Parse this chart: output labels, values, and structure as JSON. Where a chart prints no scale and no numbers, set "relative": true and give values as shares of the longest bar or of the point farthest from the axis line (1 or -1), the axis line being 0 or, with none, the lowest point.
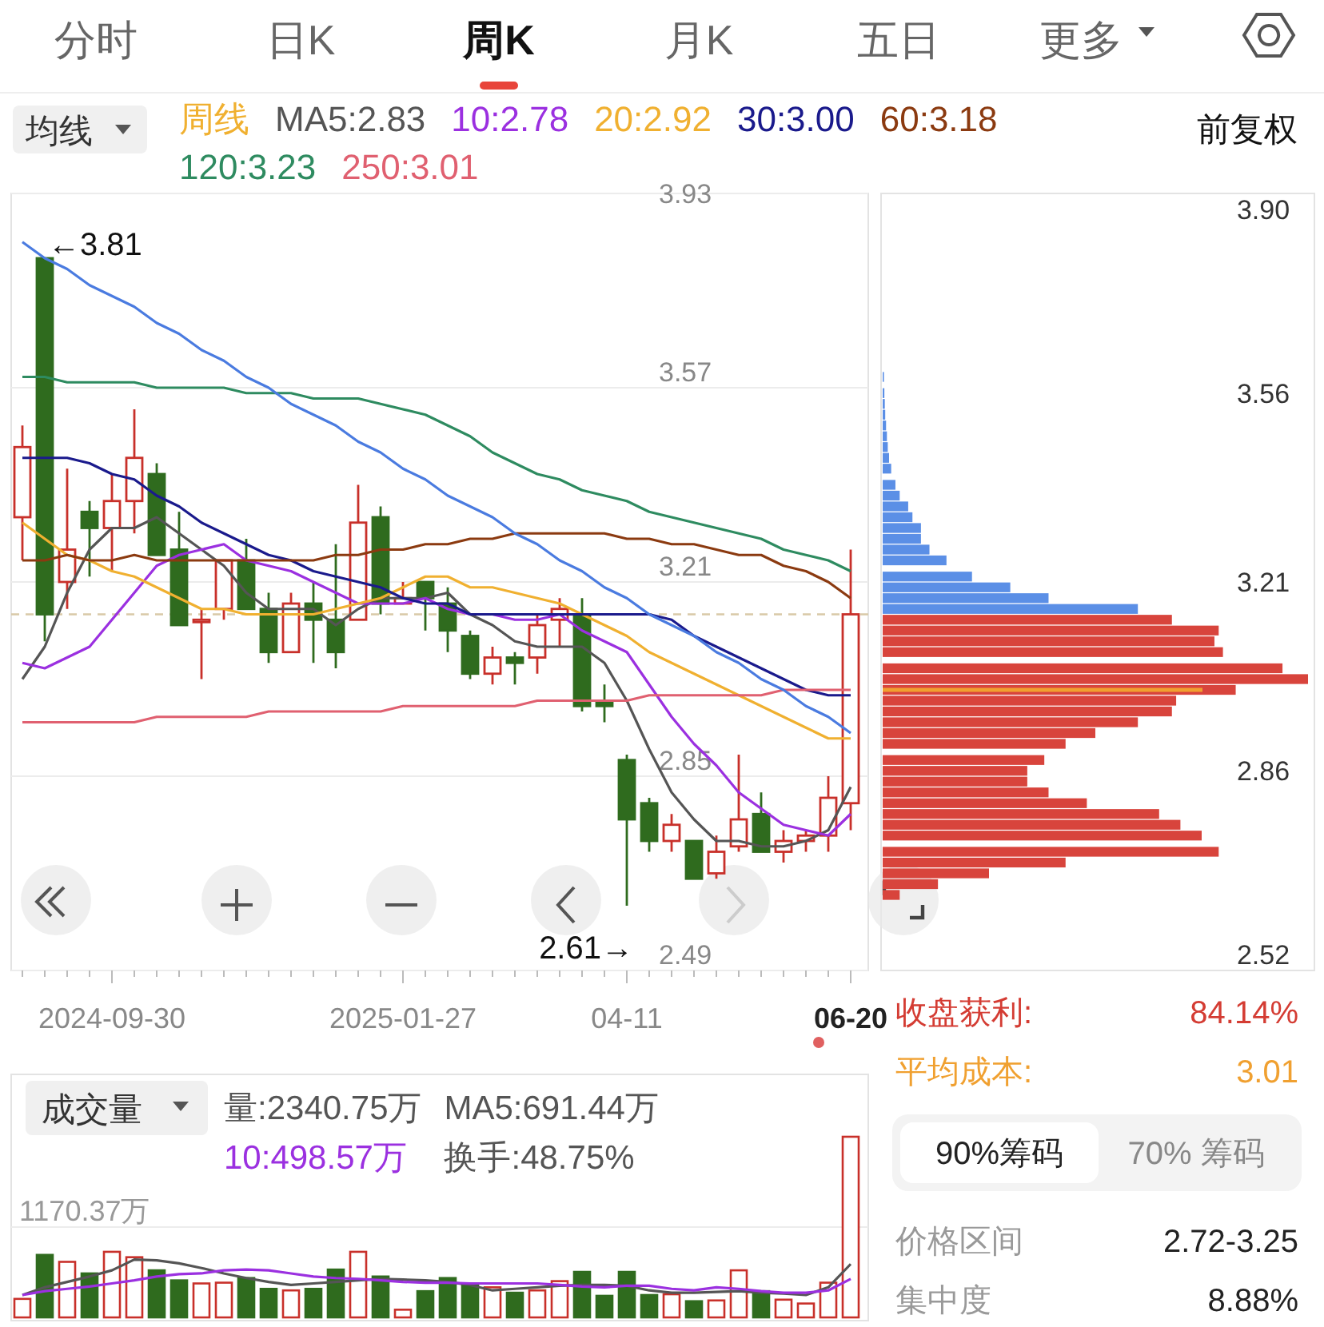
{
  "chart_data": [
    {
      "type": "candlestick",
      "title": "均线",
      "legend_title": "周线",
      "legend": "top",
      "grid": "y",
      "tick_labels": "xy",
      "categories": [
        null,
        null,
        null,
        null,
        "2024-09-30",
        null,
        null,
        null,
        null,
        null,
        null,
        null,
        null,
        null,
        null,
        null,
        null,
        "2025-01-27",
        null,
        null,
        null,
        null,
        null,
        null,
        null,
        null,
        null,
        "04-11",
        null,
        null,
        null,
        null,
        null,
        null,
        null,
        null,
        null,
        "06-20"
      ],
      "ylim": [
        2.49,
        3.93
      ],
      "yticks": [
        3.93,
        3.57,
        3.21,
        2.85,
        2.49
      ],
      "ohlc": [
        [
          3.33,
          3.5,
          3.25,
          3.46
        ],
        [
          3.81,
          3.81,
          3.1,
          3.15
        ],
        [
          3.21,
          3.42,
          3.16,
          3.27
        ],
        [
          3.34,
          3.36,
          3.22,
          3.31
        ],
        [
          3.31,
          3.41,
          3.23,
          3.36
        ],
        [
          3.36,
          3.53,
          3.3,
          3.44
        ],
        [
          3.41,
          3.43,
          3.26,
          3.26
        ],
        [
          3.27,
          3.34,
          3.13,
          3.13
        ],
        [
          3.14,
          3.16,
          3.03,
          3.14
        ],
        [
          3.16,
          3.25,
          3.14,
          3.25
        ],
        [
          3.25,
          3.29,
          3.16,
          3.16
        ],
        [
          3.16,
          3.19,
          3.06,
          3.08
        ],
        [
          3.08,
          3.19,
          3.08,
          3.17
        ],
        [
          3.17,
          3.21,
          3.06,
          3.14
        ],
        [
          3.14,
          3.28,
          3.05,
          3.08
        ],
        [
          3.14,
          3.39,
          3.14,
          3.32
        ],
        [
          3.33,
          3.35,
          3.15,
          3.17
        ],
        [
          3.17,
          3.21,
          3.17,
          3.18
        ],
        [
          3.21,
          3.21,
          3.12,
          3.18
        ],
        [
          3.17,
          3.2,
          3.08,
          3.12
        ],
        [
          3.11,
          3.12,
          3.03,
          3.04
        ],
        [
          3.04,
          3.09,
          3.02,
          3.07
        ],
        [
          3.07,
          3.08,
          3.02,
          3.06
        ],
        [
          3.07,
          3.15,
          3.04,
          3.13
        ],
        [
          3.14,
          3.18,
          3.09,
          3.16
        ],
        [
          3.15,
          3.18,
          2.97,
          2.98
        ],
        [
          2.99,
          3.02,
          2.95,
          2.98
        ],
        [
          2.88,
          2.89,
          2.61,
          2.77
        ],
        [
          2.8,
          2.81,
          2.71,
          2.73
        ],
        [
          2.73,
          2.78,
          2.71,
          2.76
        ],
        [
          2.73,
          2.73,
          2.66,
          2.66
        ],
        [
          2.67,
          2.74,
          2.66,
          2.71
        ],
        [
          2.72,
          2.89,
          2.71,
          2.77
        ],
        [
          2.78,
          2.82,
          2.71,
          2.71
        ],
        [
          2.71,
          2.75,
          2.69,
          2.73
        ],
        [
          2.73,
          2.75,
          2.71,
          2.74
        ],
        [
          2.74,
          2.85,
          2.71,
          2.81
        ],
        [
          2.8,
          3.27,
          2.75,
          3.15
        ]
      ],
      "colors": [
        "#c8302a",
        "#2f6b1e",
        "#c8302a",
        "#2f6b1e",
        "#c8302a",
        "#c8302a",
        "#2f6b1e",
        "#2f6b1e",
        "#c8302a",
        "#c8302a",
        "#2f6b1e",
        "#2f6b1e",
        "#c8302a",
        "#2f6b1e",
        "#2f6b1e",
        "#c8302a",
        "#2f6b1e",
        "#c8302a",
        "#2f6b1e",
        "#2f6b1e",
        "#2f6b1e",
        "#c8302a",
        "#2f6b1e",
        "#c8302a",
        "#c8302a",
        "#2f6b1e",
        "#2f6b1e",
        "#2f6b1e",
        "#2f6b1e",
        "#c8302a",
        "#2f6b1e",
        "#c8302a",
        "#c8302a",
        "#2f6b1e",
        "#c8302a",
        "#c8302a",
        "#c8302a",
        "#c8302a"
      ],
      "series": [
        {
          "type": "line",
          "name": "MA5:2.83",
          "color": "#555555",
          "values": [
            3.03,
            3.09,
            3.19,
            3.27,
            3.31,
            3.31,
            3.33,
            3.3,
            3.27,
            3.24,
            3.19,
            3.16,
            3.16,
            3.16,
            3.13,
            3.16,
            3.18,
            3.18,
            3.18,
            3.19,
            3.15,
            3.13,
            3.1,
            3.09,
            3.09,
            3.09,
            3.06,
            2.99,
            2.9,
            2.82,
            2.77,
            2.73,
            2.73,
            2.72,
            2.72,
            2.73,
            2.75,
            2.83
          ]
        },
        {
          "type": "line",
          "name": "10:2.78",
          "color": "#9b30e0",
          "values": [
            3.06,
            3.05,
            3.07,
            3.09,
            3.14,
            3.19,
            3.24,
            3.26,
            3.27,
            3.28,
            3.25,
            3.24,
            3.23,
            3.21,
            3.19,
            3.17,
            3.17,
            3.17,
            3.18,
            3.16,
            3.15,
            3.15,
            3.14,
            3.14,
            3.15,
            3.12,
            3.1,
            3.08,
            3.02,
            2.96,
            2.91,
            2.87,
            2.82,
            2.79,
            2.76,
            2.75,
            2.74,
            2.78
          ]
        },
        {
          "type": "line",
          "name": "20:2.92",
          "color": "#f0b030",
          "values": [
            3.32,
            3.29,
            3.26,
            3.25,
            3.23,
            3.22,
            3.2,
            3.18,
            3.16,
            3.16,
            3.15,
            3.15,
            3.15,
            3.15,
            3.16,
            3.17,
            3.18,
            3.2,
            3.22,
            3.22,
            3.2,
            3.2,
            3.19,
            3.18,
            3.17,
            3.15,
            3.13,
            3.11,
            3.08,
            3.06,
            3.04,
            3.02,
            3.0,
            2.98,
            2.96,
            2.94,
            2.92,
            2.92
          ]
        },
        {
          "type": "line",
          "name": "30:3.00",
          "color": "#1a1a8c",
          "values": [
            3.44,
            3.44,
            3.44,
            3.43,
            3.41,
            3.4,
            3.37,
            3.35,
            3.32,
            3.3,
            3.28,
            3.26,
            3.25,
            3.23,
            3.22,
            3.21,
            3.2,
            3.18,
            3.17,
            3.17,
            3.15,
            3.15,
            3.15,
            3.15,
            3.15,
            3.15,
            3.15,
            3.15,
            3.15,
            3.14,
            3.11,
            3.09,
            3.07,
            3.05,
            3.03,
            3.01,
            3.0,
            3.0
          ]
        },
        {
          "type": "line",
          "name": "60:3.18",
          "color": "#8b3a10",
          "values": [
            3.25,
            3.25,
            3.26,
            3.25,
            3.25,
            3.26,
            3.25,
            3.25,
            3.25,
            3.25,
            3.25,
            3.25,
            3.25,
            3.25,
            3.26,
            3.26,
            3.27,
            3.27,
            3.28,
            3.28,
            3.29,
            3.29,
            3.3,
            3.3,
            3.3,
            3.3,
            3.3,
            3.29,
            3.29,
            3.28,
            3.28,
            3.27,
            3.26,
            3.26,
            3.24,
            3.23,
            3.21,
            3.18
          ]
        },
        {
          "type": "line",
          "name": "120:3.23",
          "color": "#2e8b60",
          "values": [
            3.59,
            3.59,
            3.58,
            3.58,
            3.58,
            3.58,
            3.57,
            3.57,
            3.57,
            3.57,
            3.56,
            3.56,
            3.56,
            3.55,
            3.55,
            3.55,
            3.54,
            3.53,
            3.52,
            3.5,
            3.48,
            3.45,
            3.43,
            3.41,
            3.4,
            3.38,
            3.37,
            3.36,
            3.34,
            3.33,
            3.32,
            3.31,
            3.3,
            3.29,
            3.27,
            3.26,
            3.25,
            3.23
          ]
        },
        {
          "type": "line",
          "name": "250:3.01",
          "color": "#e06070",
          "values": [
            2.95,
            2.95,
            2.95,
            2.95,
            2.95,
            2.95,
            2.96,
            2.96,
            2.96,
            2.96,
            2.96,
            2.97,
            2.97,
            2.97,
            2.97,
            2.97,
            2.97,
            2.98,
            2.98,
            2.98,
            2.98,
            2.98,
            2.98,
            2.99,
            2.99,
            2.99,
            2.99,
            2.99,
            3.0,
            3.0,
            3.0,
            3.0,
            3.0,
            3.0,
            3.01,
            3.01,
            3.01,
            3.01
          ]
        },
        {
          "type": "line",
          "color": "#4a7be0",
          "values": [
            3.84,
            3.81,
            3.79,
            3.76,
            3.74,
            3.72,
            3.69,
            3.67,
            3.64,
            3.62,
            3.59,
            3.57,
            3.54,
            3.52,
            3.5,
            3.47,
            3.45,
            3.42,
            3.4,
            3.37,
            3.35,
            3.33,
            3.3,
            3.28,
            3.25,
            3.23,
            3.2,
            3.18,
            3.15,
            3.13,
            3.11,
            3.08,
            3.06,
            3.03,
            3.01,
            2.98,
            2.96,
            2.93
          ]
        }
      ],
      "ref_lines": [
        {
          "axis": "y",
          "value": 3.15,
          "color": "#d9c9a8",
          "line_style": "dashed"
        }
      ],
      "annotations": [
        "分时",
        "日K",
        "周K",
        "月K",
        "五日",
        "更多",
        "前复权",
        "←3.81",
        "2.61→"
      ]
    },
    {
      "type": "bar",
      "orientation": "horizontal",
      "relative": true,
      "ylim": [
        2.49,
        3.93
      ],
      "yticks": [
        {
          "value": 3.9,
          "label": "3.90"
        },
        3.56,
        3.21,
        2.86,
        2.52
      ],
      "x": [
        3.59,
        3.56,
        3.54,
        3.52,
        3.5,
        3.48,
        3.46,
        3.44,
        3.42,
        3.39,
        3.37,
        3.35,
        3.33,
        3.31,
        3.29,
        3.27,
        3.25,
        3.22,
        3.2,
        3.18,
        3.16,
        3.14,
        3.12,
        3.1,
        3.08,
        3.05,
        3.03,
        3.01,
        2.99,
        2.97,
        2.95,
        2.93,
        2.91,
        2.88,
        2.86,
        2.84,
        2.82,
        2.8,
        2.78,
        2.76,
        2.74,
        2.71,
        2.69,
        2.67,
        2.65,
        2.63
      ],
      "values": [
        0.003,
        0.004,
        0.005,
        0.006,
        0.008,
        0.01,
        0.012,
        0.015,
        0.02,
        0.03,
        0.04,
        0.06,
        0.07,
        0.09,
        0.09,
        0.11,
        0.15,
        0.21,
        0.3,
        0.39,
        0.6,
        0.68,
        0.79,
        0.78,
        0.8,
        0.94,
        1.0,
        0.83,
        0.69,
        0.68,
        0.6,
        0.5,
        0.43,
        0.38,
        0.34,
        0.34,
        0.39,
        0.48,
        0.65,
        0.7,
        0.75,
        0.79,
        0.43,
        0.25,
        0.13,
        0.04
      ],
      "colors": [
        "#5b8fe6",
        "#5b8fe6",
        "#5b8fe6",
        "#5b8fe6",
        "#5b8fe6",
        "#5b8fe6",
        "#5b8fe6",
        "#5b8fe6",
        "#5b8fe6",
        "#5b8fe6",
        "#5b8fe6",
        "#5b8fe6",
        "#5b8fe6",
        "#5b8fe6",
        "#5b8fe6",
        "#5b8fe6",
        "#5b8fe6",
        "#5b8fe6",
        "#5b8fe6",
        "#5b8fe6",
        "#5b8fe6",
        "#d8443c",
        "#d8443c",
        "#d8443c",
        "#d8443c",
        "#d8443c",
        "#d8443c",
        "#d8443c",
        "#d8443c",
        "#d8443c",
        "#d8443c",
        "#d8443c",
        "#d8443c",
        "#d8443c",
        "#d8443c",
        "#d8443c",
        "#d8443c",
        "#d8443c",
        "#d8443c",
        "#d8443c",
        "#d8443c",
        "#d8443c",
        "#d8443c",
        "#d8443c",
        "#d8443c",
        "#d8443c"
      ],
      "ref_lines": [
        {
          "axis": "y",
          "value": 3.01,
          "color": "#f0a030"
        }
      ]
    },
    {
      "type": "bar",
      "title": "成交量",
      "legend": "top",
      "grid": "y",
      "tick_labels": "y",
      "categories": [
        null,
        null,
        null,
        null,
        null,
        null,
        null,
        null,
        null,
        null,
        null,
        null,
        null,
        null,
        null,
        null,
        null,
        null,
        null,
        null,
        null,
        null,
        null,
        null,
        null,
        null,
        null,
        null,
        null,
        null,
        null,
        null,
        null,
        null,
        null,
        null,
        null,
        null
      ],
      "ylim": [
        0,
        2340.75
      ],
      "yticks": [
        {
          "value": 1170.37,
          "label": "1170.37万"
        }
      ],
      "values": [
        240,
        810,
        720,
        570,
        850,
        780,
        610,
        480,
        440,
        450,
        510,
        370,
        350,
        370,
        620,
        850,
        530,
        100,
        340,
        510,
        440,
        390,
        320,
        350,
        470,
        590,
        280,
        590,
        290,
        300,
        210,
        220,
        610,
        340,
        230,
        180,
        450,
        2340.75
      ],
      "colors": [
        "#c8302a",
        "#2f6b1e",
        "#c8302a",
        "#2f6b1e",
        "#c8302a",
        "#c8302a",
        "#2f6b1e",
        "#2f6b1e",
        "#c8302a",
        "#c8302a",
        "#2f6b1e",
        "#2f6b1e",
        "#c8302a",
        "#2f6b1e",
        "#2f6b1e",
        "#c8302a",
        "#2f6b1e",
        "#c8302a",
        "#2f6b1e",
        "#2f6b1e",
        "#2f6b1e",
        "#c8302a",
        "#2f6b1e",
        "#c8302a",
        "#c8302a",
        "#2f6b1e",
        "#2f6b1e",
        "#2f6b1e",
        "#2f6b1e",
        "#c8302a",
        "#2f6b1e",
        "#c8302a",
        "#c8302a",
        "#2f6b1e",
        "#c8302a",
        "#c8302a",
        "#c8302a",
        "#c8302a"
      ],
      "series": [
        {
          "type": "line",
          "name": "MA5:691.44万",
          "color": "#555555",
          "values": [
            290,
            390,
            460,
            530,
            610,
            750,
            740,
            700,
            640,
            570,
            510,
            460,
            420,
            440,
            460,
            480,
            500,
            490,
            480,
            460,
            420,
            350,
            370,
            390,
            410,
            420,
            420,
            410,
            350,
            320,
            320,
            330,
            340,
            320,
            310,
            290,
            390,
            691.44
          ]
        },
        {
          "type": "line",
          "name": "10:498.57万",
          "color": "#9b30e0",
          "values": [
            290,
            340,
            370,
            400,
            440,
            480,
            530,
            560,
            570,
            610,
            620,
            610,
            570,
            530,
            510,
            500,
            480,
            460,
            450,
            450,
            440,
            440,
            440,
            440,
            420,
            400,
            390,
            410,
            410,
            370,
            350,
            390,
            370,
            340,
            320,
            320,
            350,
            498.57
          ]
        }
      ],
      "annotations": [
        "量:2340.75万",
        "换手:48.75%"
      ]
    },
    {
      "type": "other",
      "annotations": [
        "收盘获利:",
        "84.14%",
        "平均成本:",
        "3.01",
        "90%筹码",
        "70% 筹码",
        "价格区间",
        "2.72-3.25",
        "集中度",
        "8.88%"
      ]
    }
  ]
}
